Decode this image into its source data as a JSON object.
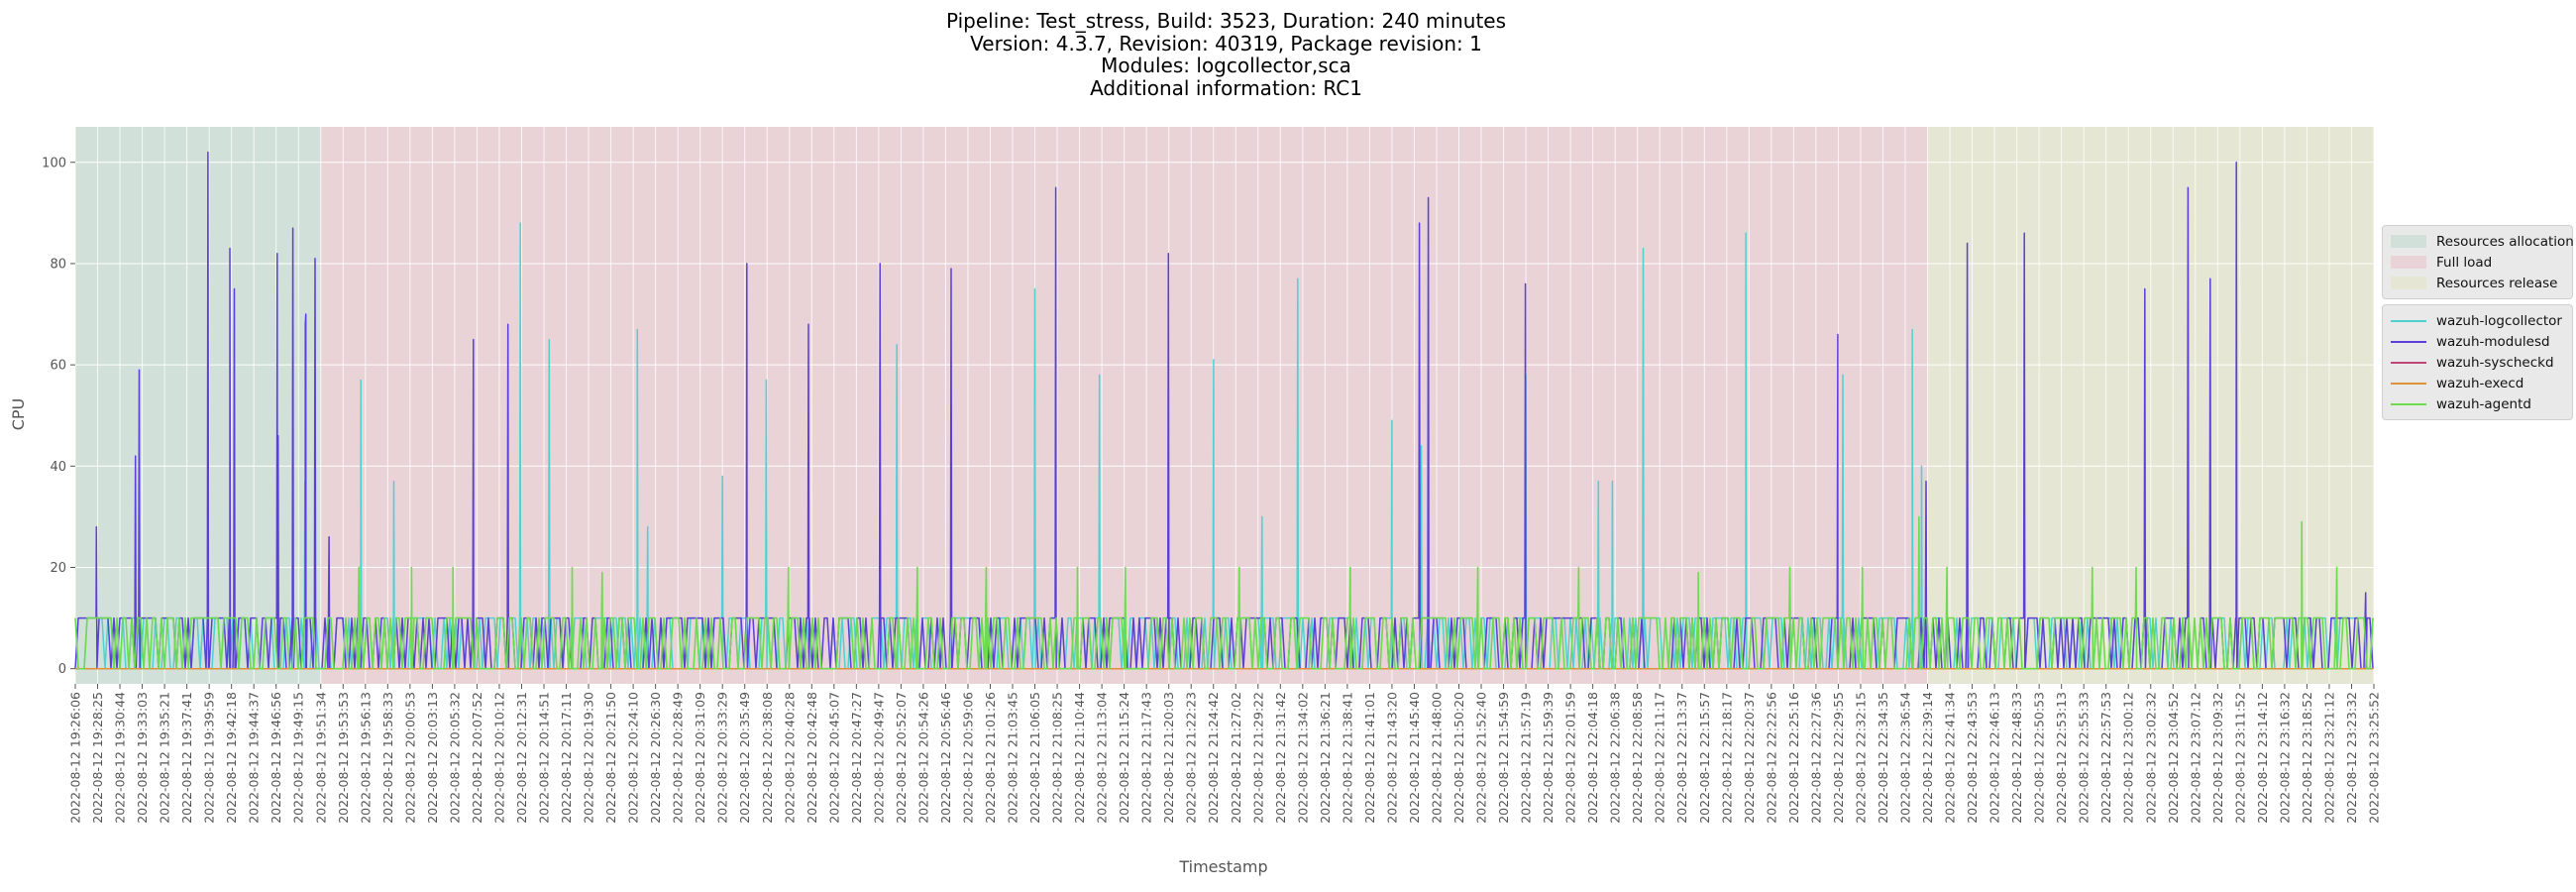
{
  "title_lines": [
    "Pipeline: Test_stress, Build: 3523, Duration: 240 minutes",
    "Version: 4.3.7, Revision: 40319, Package revision: 1",
    "Modules: logcollector,sca",
    "Additional information: RC1"
  ],
  "chart_data": {
    "type": "line",
    "xlabel": "Timestamp",
    "ylabel": "CPU",
    "ylim": [
      -3,
      107
    ],
    "yticks": [
      0,
      20,
      40,
      60,
      80,
      100
    ],
    "grid": true,
    "legend_placement": "right",
    "x_ticks": [
      "2022-08-12 19:26:06",
      "2022-08-12 19:28:25",
      "2022-08-12 19:30:44",
      "2022-08-12 19:33:03",
      "2022-08-12 19:35:21",
      "2022-08-12 19:37:41",
      "2022-08-12 19:39:59",
      "2022-08-12 19:42:18",
      "2022-08-12 19:44:37",
      "2022-08-12 19:46:56",
      "2022-08-12 19:49:15",
      "2022-08-12 19:51:34",
      "2022-08-12 19:53:53",
      "2022-08-12 19:56:13",
      "2022-08-12 19:58:33",
      "2022-08-12 20:00:53",
      "2022-08-12 20:03:13",
      "2022-08-12 20:05:32",
      "2022-08-12 20:07:52",
      "2022-08-12 20:10:12",
      "2022-08-12 20:12:31",
      "2022-08-12 20:14:51",
      "2022-08-12 20:17:11",
      "2022-08-12 20:19:30",
      "2022-08-12 20:21:50",
      "2022-08-12 20:24:10",
      "2022-08-12 20:26:30",
      "2022-08-12 20:28:49",
      "2022-08-12 20:31:09",
      "2022-08-12 20:33:29",
      "2022-08-12 20:35:49",
      "2022-08-12 20:38:08",
      "2022-08-12 20:40:28",
      "2022-08-12 20:42:48",
      "2022-08-12 20:45:07",
      "2022-08-12 20:47:27",
      "2022-08-12 20:49:47",
      "2022-08-12 20:52:07",
      "2022-08-12 20:54:26",
      "2022-08-12 20:56:46",
      "2022-08-12 20:59:06",
      "2022-08-12 21:01:26",
      "2022-08-12 21:03:45",
      "2022-08-12 21:06:05",
      "2022-08-12 21:08:25",
      "2022-08-12 21:10:44",
      "2022-08-12 21:13:04",
      "2022-08-12 21:15:24",
      "2022-08-12 21:17:43",
      "2022-08-12 21:20:03",
      "2022-08-12 21:22:23",
      "2022-08-12 21:24:42",
      "2022-08-12 21:27:02",
      "2022-08-12 21:29:22",
      "2022-08-12 21:31:42",
      "2022-08-12 21:34:02",
      "2022-08-12 21:36:21",
      "2022-08-12 21:38:41",
      "2022-08-12 21:41:01",
      "2022-08-12 21:43:20",
      "2022-08-12 21:45:40",
      "2022-08-12 21:48:00",
      "2022-08-12 21:50:20",
      "2022-08-12 21:52:40",
      "2022-08-12 21:54:59",
      "2022-08-12 21:57:19",
      "2022-08-12 21:59:39",
      "2022-08-12 22:01:59",
      "2022-08-12 22:04:18",
      "2022-08-12 22:06:38",
      "2022-08-12 22:08:58",
      "2022-08-12 22:11:17",
      "2022-08-12 22:13:37",
      "2022-08-12 22:15:57",
      "2022-08-12 22:18:17",
      "2022-08-12 22:20:37",
      "2022-08-12 22:22:56",
      "2022-08-12 22:25:16",
      "2022-08-12 22:27:36",
      "2022-08-12 22:29:55",
      "2022-08-12 22:32:15",
      "2022-08-12 22:34:35",
      "2022-08-12 22:36:54",
      "2022-08-12 22:39:14",
      "2022-08-12 22:41:34",
      "2022-08-12 22:43:53",
      "2022-08-12 22:46:13",
      "2022-08-12 22:48:33",
      "2022-08-12 22:50:53",
      "2022-08-12 22:53:13",
      "2022-08-12 22:55:33",
      "2022-08-12 22:57:53",
      "2022-08-12 23:00:12",
      "2022-08-12 23:02:32",
      "2022-08-12 23:04:52",
      "2022-08-12 23:07:12",
      "2022-08-12 23:09:32",
      "2022-08-12 23:11:52",
      "2022-08-12 23:14:12",
      "2022-08-12 23:16:32",
      "2022-08-12 23:18:52",
      "2022-08-12 23:21:12",
      "2022-08-12 23:23:32",
      "2022-08-12 23:25:52"
    ],
    "phases": [
      {
        "name": "Resources allocation",
        "color": "#d1e0d8",
        "start": "2022-08-12 19:26:06",
        "end": "2022-08-12 19:51:34"
      },
      {
        "name": "Full load",
        "color": "#e9d3d6",
        "start": "2022-08-12 19:51:34",
        "end": "2022-08-12 22:39:14"
      },
      {
        "name": "Resources release",
        "color": "#e5e6d3",
        "start": "2022-08-12 22:39:14",
        "end": "2022-08-12 23:25:52"
      }
    ],
    "series": [
      {
        "name": "wazuh-logcollector",
        "color": "#4fd1d1",
        "baseline": [
          0,
          10
        ],
        "spikes": [
          [
            "2022-08-12 19:49:15",
            37
          ],
          [
            "2022-08-12 19:56:13",
            57
          ],
          [
            "2022-08-12 19:58:33",
            37
          ],
          [
            "2022-08-12 20:12:31",
            88
          ],
          [
            "2022-08-12 20:14:51",
            65
          ],
          [
            "2022-08-12 20:24:10",
            67
          ],
          [
            "2022-08-12 20:26:30",
            28
          ],
          [
            "2022-08-12 20:33:29",
            38
          ],
          [
            "2022-08-12 20:38:08",
            57
          ],
          [
            "2022-08-12 20:52:07",
            64
          ],
          [
            "2022-08-12 21:06:05",
            75
          ],
          [
            "2022-08-12 21:13:04",
            58
          ],
          [
            "2022-08-12 21:24:42",
            61
          ],
          [
            "2022-08-12 21:29:22",
            30
          ],
          [
            "2022-08-12 21:34:02",
            77
          ],
          [
            "2022-08-12 21:43:20",
            49
          ],
          [
            "2022-08-12 21:45:40",
            44
          ],
          [
            "2022-08-12 21:57:19",
            58
          ],
          [
            "2022-08-12 22:04:18",
            37
          ],
          [
            "2022-08-12 22:06:38",
            37
          ],
          [
            "2022-08-12 22:08:58",
            83
          ],
          [
            "2022-08-12 22:20:37",
            86
          ],
          [
            "2022-08-12 22:29:55",
            58
          ],
          [
            "2022-08-12 22:36:54",
            67
          ],
          [
            "2022-08-12 22:39:14",
            40
          ]
        ]
      },
      {
        "name": "wazuh-modulesd",
        "color": "#5b3fd8",
        "baseline": [
          0,
          10
        ],
        "spikes": [
          [
            "2022-08-12 19:28:25",
            28
          ],
          [
            "2022-08-12 19:33:03",
            59
          ],
          [
            "2022-08-12 19:33:03",
            42
          ],
          [
            "2022-08-12 19:39:59",
            102
          ],
          [
            "2022-08-12 19:42:18",
            83
          ],
          [
            "2022-08-12 19:42:18",
            75
          ],
          [
            "2022-08-12 19:46:56",
            82
          ],
          [
            "2022-08-12 19:46:56",
            46
          ],
          [
            "2022-08-12 19:46:56",
            35
          ],
          [
            "2022-08-12 19:49:15",
            68
          ],
          [
            "2022-08-12 19:49:15",
            70
          ],
          [
            "2022-08-12 19:49:15",
            87
          ],
          [
            "2022-08-12 19:51:34",
            81
          ],
          [
            "2022-08-12 19:51:34",
            26
          ],
          [
            "2022-08-12 20:07:52",
            65
          ],
          [
            "2022-08-12 20:10:12",
            68
          ],
          [
            "2022-08-12 20:35:49",
            80
          ],
          [
            "2022-08-12 20:42:48",
            68
          ],
          [
            "2022-08-12 20:49:47",
            80
          ],
          [
            "2022-08-12 20:56:46",
            79
          ],
          [
            "2022-08-12 21:08:25",
            95
          ],
          [
            "2022-08-12 21:20:03",
            82
          ],
          [
            "2022-08-12 21:45:40",
            88
          ],
          [
            "2022-08-12 21:48:00",
            93
          ],
          [
            "2022-08-12 21:57:19",
            76
          ],
          [
            "2022-08-12 22:29:55",
            66
          ],
          [
            "2022-08-12 22:39:14",
            37
          ],
          [
            "2022-08-12 22:43:53",
            84
          ],
          [
            "2022-08-12 22:48:33",
            86
          ],
          [
            "2022-08-12 23:02:32",
            75
          ],
          [
            "2022-08-12 23:07:12",
            95
          ],
          [
            "2022-08-12 23:09:32",
            77
          ],
          [
            "2022-08-12 23:11:52",
            100
          ],
          [
            "2022-08-12 23:25:52",
            15
          ]
        ]
      },
      {
        "name": "wazuh-syscheckd",
        "color": "#c2457a",
        "baseline": [
          0,
          0
        ],
        "spikes": []
      },
      {
        "name": "wazuh-execd",
        "color": "#e0913b",
        "baseline": [
          0,
          0
        ],
        "spikes": []
      },
      {
        "name": "wazuh-agentd",
        "color": "#6cdb4d",
        "baseline": [
          0,
          10
        ],
        "spikes": [
          [
            "2022-08-12 19:56:13",
            20
          ],
          [
            "2022-08-12 20:00:53",
            20
          ],
          [
            "2022-08-12 20:05:32",
            20
          ],
          [
            "2022-08-12 20:17:11",
            20
          ],
          [
            "2022-08-12 20:21:50",
            19
          ],
          [
            "2022-08-12 20:40:28",
            20
          ],
          [
            "2022-08-12 20:54:26",
            20
          ],
          [
            "2022-08-12 21:01:26",
            20
          ],
          [
            "2022-08-12 21:10:44",
            20
          ],
          [
            "2022-08-12 21:15:24",
            20
          ],
          [
            "2022-08-12 21:27:02",
            20
          ],
          [
            "2022-08-12 21:38:41",
            20
          ],
          [
            "2022-08-12 21:52:40",
            20
          ],
          [
            "2022-08-12 22:01:59",
            20
          ],
          [
            "2022-08-12 22:15:57",
            19
          ],
          [
            "2022-08-12 22:25:16",
            20
          ],
          [
            "2022-08-12 22:32:15",
            20
          ],
          [
            "2022-08-12 22:39:14",
            30
          ],
          [
            "2022-08-12 22:41:34",
            20
          ],
          [
            "2022-08-12 22:55:33",
            20
          ],
          [
            "2022-08-12 23:00:12",
            20
          ],
          [
            "2022-08-12 23:18:52",
            29
          ],
          [
            "2022-08-12 23:21:12",
            20
          ]
        ]
      }
    ]
  },
  "legend_phases": [
    "Resources allocation",
    "Full load",
    "Resources release"
  ],
  "legend_series": [
    "wazuh-logcollector",
    "wazuh-modulesd",
    "wazuh-syscheckd",
    "wazuh-execd",
    "wazuh-agentd"
  ]
}
